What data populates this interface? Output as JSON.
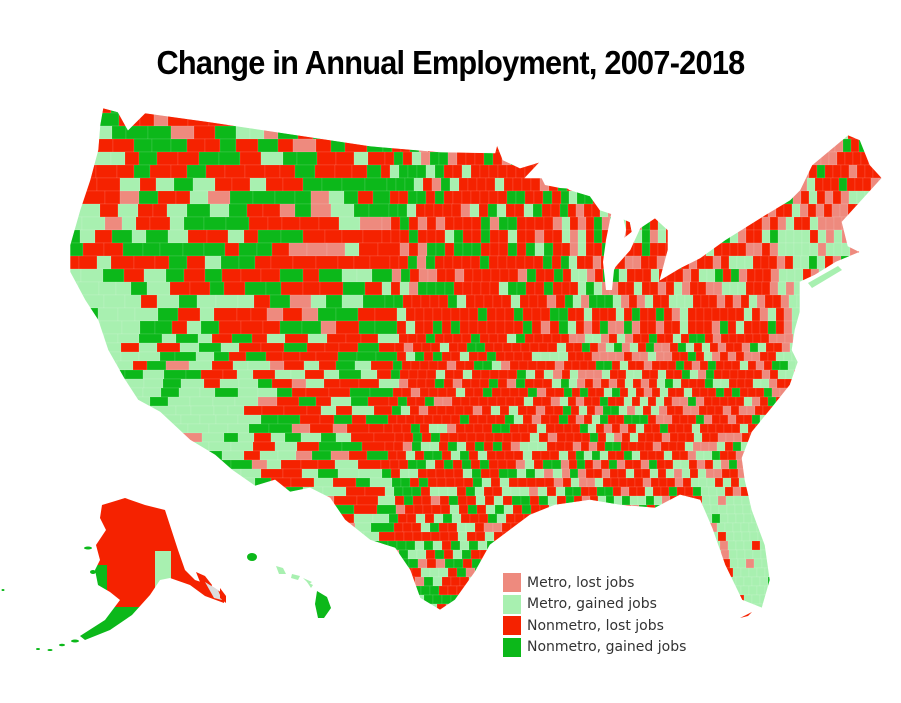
{
  "title": "Change in Annual Employment, 2007-2018",
  "legend": {
    "items": [
      {
        "label": "Metro, lost jobs",
        "color": "#ee8a7e"
      },
      {
        "label": "Metro, gained jobs",
        "color": "#a8f0b0"
      },
      {
        "label": "Nonmetro, lost jobs",
        "color": "#f52200"
      },
      {
        "label": "Nonmetro, gained jobs",
        "color": "#0cb81a"
      }
    ]
  },
  "no_data_color": "#dddddd",
  "chart_data": {
    "type": "heatmap",
    "subtype": "choropleth",
    "title": "Change in Annual Employment, 2007-2018",
    "geography": "U.S. counties (contiguous US, Alaska, Hawaii)",
    "categories": [
      "Metro, lost jobs",
      "Metro, gained jobs",
      "Nonmetro, lost jobs",
      "Nonmetro, gained jobs"
    ],
    "colors": [
      "#ee8a7e",
      "#a8f0b0",
      "#f52200",
      "#0cb81a"
    ],
    "legend_position": "bottom-right",
    "regional_pattern": {
      "Pacific coast (CA/OR/WA coast)": "Metro, gained jobs dominant",
      "Nevada / Idaho / Wyoming / Montana": "Mixed nonmetro lost and nonmetro gained",
      "North Dakota": "Nonmetro, gained jobs dominant",
      "Great Plains / Kansas / Nebraska": "Nonmetro, lost jobs dominant",
      "Texas": "Mixed; metro gained around cities, nonmetro gained in south",
      "Midwest / Appalachia": "Nonmetro, lost jobs dominant with metro lost pockets",
      "Northeast": "Metro lost and metro gained along coast; nonmetro lost inland",
      "Florida": "Metro, gained jobs dominant",
      "Alaska": "Nonmetro, lost jobs dominant; some gained and no-data areas",
      "Hawaii": "Nonmetro gained (Big Island), metro gained (Oahu)"
    }
  }
}
